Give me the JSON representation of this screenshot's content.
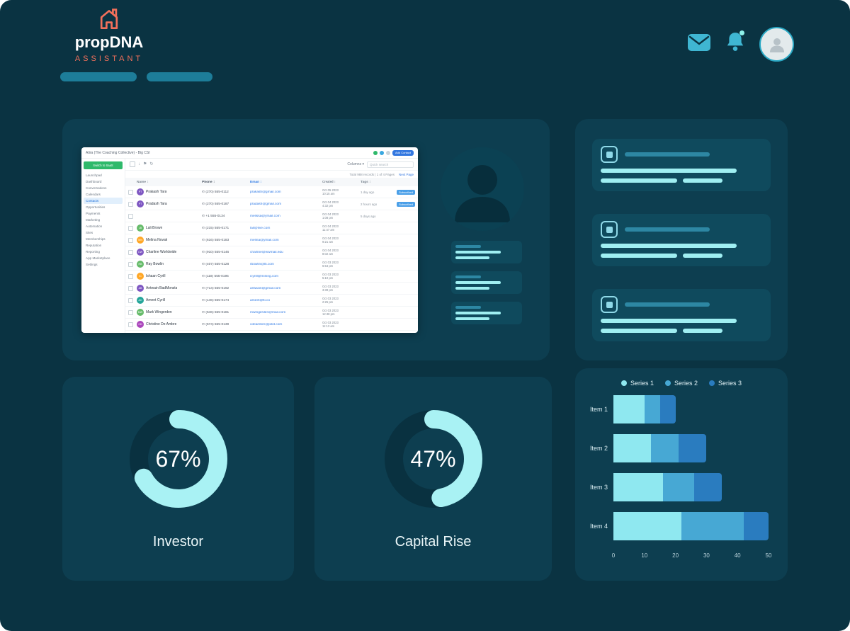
{
  "theme": {
    "background": "#0A3342",
    "panel": "#0D3E50",
    "card": "#0F4A5D",
    "accent_light": "#9FEFF2",
    "accent_medium": "#2D87A3",
    "brand_coral": "#F2705B",
    "icon_teal": "#3FB6D2"
  },
  "header": {
    "brand": {
      "name": "propDNA",
      "subtitle": "ASSISTANT",
      "logo_icon": "house-icon"
    },
    "nav_pills": 2,
    "actions": [
      {
        "icon": "mail-icon"
      },
      {
        "icon": "bell-icon",
        "has_badge": true
      },
      {
        "icon": "user-avatar"
      }
    ]
  },
  "crm": {
    "window_title": "Atira (The Coaching Collective) - Big CSI",
    "add_button": "Add Contact",
    "sidebar": {
      "switch_button": "Switch to SaaS",
      "items": [
        "Launchpad",
        "Dashboard",
        "Conversations",
        "Calendars",
        "Contacts",
        "Opportunities",
        "Payments",
        "Marketing",
        "Automation",
        "Sites",
        "Memberships",
        "Reputation",
        "Reporting",
        "App Marketplace",
        "Settings"
      ],
      "active_item": "Contacts"
    },
    "toolbar": {
      "columns_label": "Columns",
      "search_placeholder": "Quick search"
    },
    "pagination": {
      "summary": "Total 988 records | 1 of 4 Pages",
      "next_label": "Next Page"
    },
    "table": {
      "headers": [
        "Name",
        "Phone",
        "Email",
        "Created",
        "Tags"
      ],
      "rows": [
        {
          "name": "Prakash Tara",
          "initials": "PT",
          "color": "#7E57C2",
          "phone": "(270) 555-0112",
          "email": "prakash@gmail.com",
          "date": "Oct 05 2023",
          "time": "10:15 am",
          "ago": "1 day ago",
          "tag": "Subscribed"
        },
        {
          "name": "Pradash Tara",
          "initials": "PT",
          "color": "#7E57C2",
          "phone": "(270) 555-0187",
          "email": "pradash@gmail.com",
          "date": "Oct 04 2023",
          "time": "4:32 pm",
          "ago": "2 hours ago",
          "tag": "Subscribed"
        },
        {
          "name": "",
          "initials": "",
          "color": null,
          "phone": "+1 555-0134",
          "email": "melissa@ymail.com",
          "date": "Oct 04 2023",
          "time": "1:08 pm",
          "ago": "5 days ago",
          "tag": null
        },
        {
          "name": "Lali Brown",
          "initials": "LB",
          "color": "#66BB6A",
          "phone": "(215) 555-0171",
          "email": "lali@live.com",
          "date": "Oct 04 2023",
          "time": "11:47 am",
          "ago": null,
          "tag": null
        },
        {
          "name": "Melina Novak",
          "initials": "MN",
          "color": "#FFA726",
          "phone": "(616) 555-0183",
          "email": "melina@ymail.com",
          "date": "Oct 04 2023",
          "time": "9:21 am",
          "ago": null,
          "tag": null
        },
        {
          "name": "Charline Worldwide",
          "initials": "CW",
          "color": "#7E57C2",
          "phone": "(910) 555-0146",
          "email": "charline@wwmail.edu",
          "date": "Oct 04 2023",
          "time": "8:02 am",
          "ago": null,
          "tag": null
        },
        {
          "name": "Ray Bowlin",
          "initials": "RB",
          "color": "#66BB6A",
          "phone": "(407) 555-0128",
          "email": "rbowlin@lti.com",
          "date": "Oct 03 2023",
          "time": "6:54 pm",
          "ago": null,
          "tag": null
        },
        {
          "name": "Ishaan Cyrill",
          "initials": "IC",
          "color": "#FFA726",
          "phone": "(118) 555-0195",
          "email": "icyrill@mining.com",
          "date": "Oct 03 2023",
          "time": "5:10 pm",
          "ago": null,
          "tag": null
        },
        {
          "name": "Antwain BadMonsta",
          "initials": "AB",
          "color": "#7E57C2",
          "phone": "(714) 555-0192",
          "email": "antwain@gmail.com",
          "date": "Oct 03 2023",
          "time": "3:39 pm",
          "ago": null,
          "tag": null
        },
        {
          "name": "Ameet Cyrill",
          "initials": "AC",
          "color": "#26A69A",
          "phone": "(146) 555-0174",
          "email": "ameet@lti.co",
          "date": "Oct 03 2023",
          "time": "2:25 pm",
          "ago": null,
          "tag": null
        },
        {
          "name": "Mark Wingerden",
          "initials": "MW",
          "color": "#66BB6A",
          "phone": "(646) 555-0181",
          "email": "mwingerden@mail.com",
          "date": "Oct 03 2023",
          "time": "12:48 pm",
          "ago": null,
          "tag": null
        },
        {
          "name": "Christine De Ambre",
          "initials": "CD",
          "color": "#AB47BC",
          "phone": "(574) 555-0139",
          "email": "cdeambre@pilot.com",
          "date": "Oct 03 2023",
          "time": "11:13 am",
          "ago": null,
          "tag": null
        }
      ]
    }
  },
  "profile_card": {
    "avatar_icon": "person-icon",
    "chips": 3
  },
  "notifications": {
    "cards": 3,
    "icon": "image-placeholder-icon"
  },
  "gauges": [
    {
      "value": 67,
      "display": "67%",
      "label": "Investor"
    },
    {
      "value": 47,
      "display": "47%",
      "label": "Capital Rise"
    }
  ],
  "chart_data": {
    "type": "bar",
    "orientation": "horizontal",
    "title": "",
    "categories": [
      "Item 1",
      "Item 2",
      "Item 3",
      "Item 4"
    ],
    "series": [
      {
        "name": "Series 1",
        "color": "#8FE8F0",
        "values": [
          10,
          12,
          16,
          22
        ]
      },
      {
        "name": "Series 2",
        "color": "#47A8D4",
        "values": [
          5,
          9,
          10,
          20
        ]
      },
      {
        "name": "Series 3",
        "color": "#2A7CBF",
        "values": [
          5,
          9,
          9,
          8
        ]
      }
    ],
    "totals": [
      20,
      30,
      35,
      50
    ],
    "xlim": [
      0,
      50
    ],
    "xticks": [
      0,
      10,
      20,
      30,
      40,
      50
    ],
    "legend_position": "top",
    "grid": false
  }
}
